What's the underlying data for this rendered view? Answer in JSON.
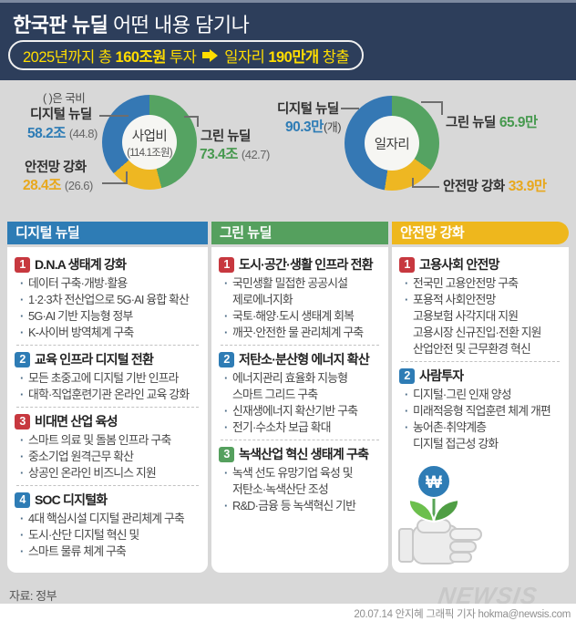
{
  "header": {
    "title_bold": "한국판 뉴딜 ",
    "title_rest": "어떤 내용 담기나",
    "banner": {
      "part1": "2025년까지 총",
      "invest": "160조원",
      "part2": "투자",
      "part3": "일자리",
      "jobs": "190만개",
      "part4": "창출"
    }
  },
  "chart_data": [
    {
      "type": "pie",
      "subtype": "donut",
      "title": "사업비",
      "center_label": "사업비",
      "center_sub": "(114.1조원)",
      "note": "( )은 국비",
      "categories": [
        "디지털 뉴딜",
        "그린 뉴딜",
        "안전망 강화"
      ],
      "values": [
        58.2,
        73.4,
        28.4
      ],
      "value_labels": [
        "58.2조",
        "73.4조",
        "28.4조"
      ],
      "paren_labels": [
        "(44.8)",
        "(42.7)",
        "(26.6)"
      ],
      "unit": "조원",
      "colors": [
        "#3578b4",
        "#55a362",
        "#eeb722"
      ],
      "order": [
        1,
        2,
        0
      ],
      "legend_position": "around",
      "grid": false
    },
    {
      "type": "pie",
      "subtype": "donut",
      "title": "일자리",
      "center_label": "일자리",
      "categories": [
        "디지털 뉴딜",
        "그린 뉴딜",
        "안전망 강화"
      ],
      "values": [
        90.3,
        65.9,
        33.9
      ],
      "value_labels": [
        "90.3만",
        "65.9만",
        "33.9만"
      ],
      "paren_labels": [
        "(개)",
        "",
        ""
      ],
      "unit": "만 개",
      "colors": [
        "#3578b4",
        "#55a362",
        "#eeb722"
      ],
      "order": [
        1,
        2,
        0
      ],
      "legend_position": "around",
      "grid": false
    }
  ],
  "badge_colors": {
    "red": "#c7383f",
    "blue": "#2e7cb5",
    "green": "#55a05e"
  },
  "columns": [
    {
      "title": "디지털 뉴딜",
      "color": "#2e7cb5",
      "groups": [
        {
          "num": "1",
          "badge": "red",
          "title": "D.N.A 생태계 강화",
          "items": [
            {
              "t": "데이터 구축·개방·활용",
              "b": true
            },
            {
              "t": "1·2·3차 전산업으로 5G·AI 융합 확산",
              "b": true
            },
            {
              "t": "5G·AI 기반 지능형 정부",
              "b": true
            },
            {
              "t": "K-사이버 방역체계 구축",
              "b": true
            }
          ]
        },
        {
          "num": "2",
          "badge": "blue",
          "title": "교육 인프라 디지털 전환",
          "items": [
            {
              "t": "모든 초중고에 디지털 기반 인프라",
              "b": true
            },
            {
              "t": "대학·직업훈련기관 온라인 교육 강화",
              "b": true
            }
          ]
        },
        {
          "num": "3",
          "badge": "red",
          "title": "비대면 산업 육성",
          "items": [
            {
              "t": "스마트 의료 및 돌봄 인프라 구축",
              "b": true
            },
            {
              "t": "중소기업 원격근무 확산",
              "b": true
            },
            {
              "t": "상공인 온라인 비즈니스 지원",
              "b": true
            }
          ]
        },
        {
          "num": "4",
          "badge": "blue",
          "title": "SOC 디지털화",
          "items": [
            {
              "t": "4대 핵심시설 디지털 관리체계 구축",
              "b": true
            },
            {
              "t": "도시·산단 디지털 혁신 및",
              "b": true
            },
            {
              "t": "스마트 물류 체계 구축",
              "b": true
            }
          ]
        }
      ]
    },
    {
      "title": "그린 뉴딜",
      "color": "#55a05e",
      "groups": [
        {
          "num": "1",
          "badge": "red",
          "title": "도시·공간·생활 인프라 전환",
          "items": [
            {
              "t": "국민생활 밀접한 공공시설",
              "b": true
            },
            {
              "t": "제로에너지화",
              "b": false
            },
            {
              "t": "국토·해양·도시 생태계 회복",
              "b": true
            },
            {
              "t": "깨끗·안전한 물 관리체계 구축",
              "b": true
            }
          ]
        },
        {
          "num": "2",
          "badge": "blue",
          "title": "저탄소·분산형 에너지 확산",
          "items": [
            {
              "t": "에너지관리 효율화 지능형",
              "b": true
            },
            {
              "t": "스마트 그리드 구축",
              "b": false
            },
            {
              "t": "신재생에너지 확산기반 구축",
              "b": true
            },
            {
              "t": "전기·수소차 보급 확대",
              "b": true
            }
          ]
        },
        {
          "num": "3",
          "badge": "green",
          "title": "녹색산업 혁신 생태계 구축",
          "items": [
            {
              "t": "녹색 선도 유망기업 육성 및",
              "b": true
            },
            {
              "t": "저탄소·녹색산단 조성",
              "b": false
            },
            {
              "t": "R&D·금융 등 녹색혁신 기반",
              "b": true
            }
          ]
        }
      ]
    },
    {
      "title": "안전망 강화",
      "color": "#eeb71d",
      "groups": [
        {
          "num": "1",
          "badge": "red",
          "title": "고용사회 안전망",
          "items": [
            {
              "t": "전국민 고용안전망 구축",
              "b": true
            },
            {
              "t": "포용적 사회안전망",
              "b": true
            },
            {
              "t": "고용보험 사각지대 지원",
              "b": false
            },
            {
              "t": "고용시장 신규진입·전환 지원",
              "b": false
            },
            {
              "t": "산업안전 및 근무환경 혁신",
              "b": false
            }
          ]
        },
        {
          "num": "2",
          "badge": "blue",
          "title": "사람투자",
          "items": [
            {
              "t": "디지털·그린 인재 양성",
              "b": true
            },
            {
              "t": "미래적응형 직업훈련 체계 개편",
              "b": true
            },
            {
              "t": "농어촌·취약계층",
              "b": true
            },
            {
              "t": "디지털 접근성 강화",
              "b": false
            }
          ]
        }
      ]
    }
  ],
  "illustration": {
    "won_symbol": "₩"
  },
  "footer": {
    "source": "자료: 정부",
    "logo": "NEWSIS",
    "credit": "20.07.14 안지혜 그래픽 기자 hokma@newsis.com"
  }
}
